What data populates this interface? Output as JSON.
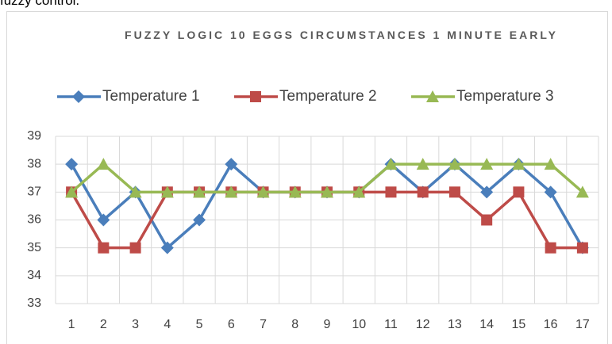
{
  "caption": "fuzzy control.",
  "chart_data": {
    "type": "line",
    "title": "FUZZY LOGIC 10 EGGS CIRCUMSTANCES 1 MINUTE EARLY",
    "categories": [
      "1",
      "2",
      "3",
      "4",
      "5",
      "6",
      "7",
      "8",
      "9",
      "10",
      "11",
      "12",
      "13",
      "14",
      "15",
      "16",
      "17"
    ],
    "series": [
      {
        "name": "Temperature 1",
        "color": "#4a7ebb",
        "marker": "diamond",
        "values": [
          38,
          36,
          37,
          35,
          36,
          38,
          37,
          37,
          37,
          37,
          38,
          37,
          38,
          37,
          38,
          37,
          35
        ]
      },
      {
        "name": "Temperature 2",
        "color": "#be4b48",
        "marker": "square",
        "values": [
          37,
          35,
          35,
          37,
          37,
          37,
          37,
          37,
          37,
          37,
          37,
          37,
          37,
          36,
          37,
          35,
          35
        ]
      },
      {
        "name": "Temperature 3",
        "color": "#98b954",
        "marker": "triangle",
        "values": [
          37,
          38,
          37,
          37,
          37,
          37,
          37,
          37,
          37,
          37,
          38,
          38,
          38,
          38,
          38,
          38,
          37
        ]
      }
    ],
    "ylim": [
      33,
      39
    ],
    "yticks": [
      33,
      34,
      35,
      36,
      37,
      38,
      39
    ],
    "grid": true,
    "legend": "top"
  }
}
